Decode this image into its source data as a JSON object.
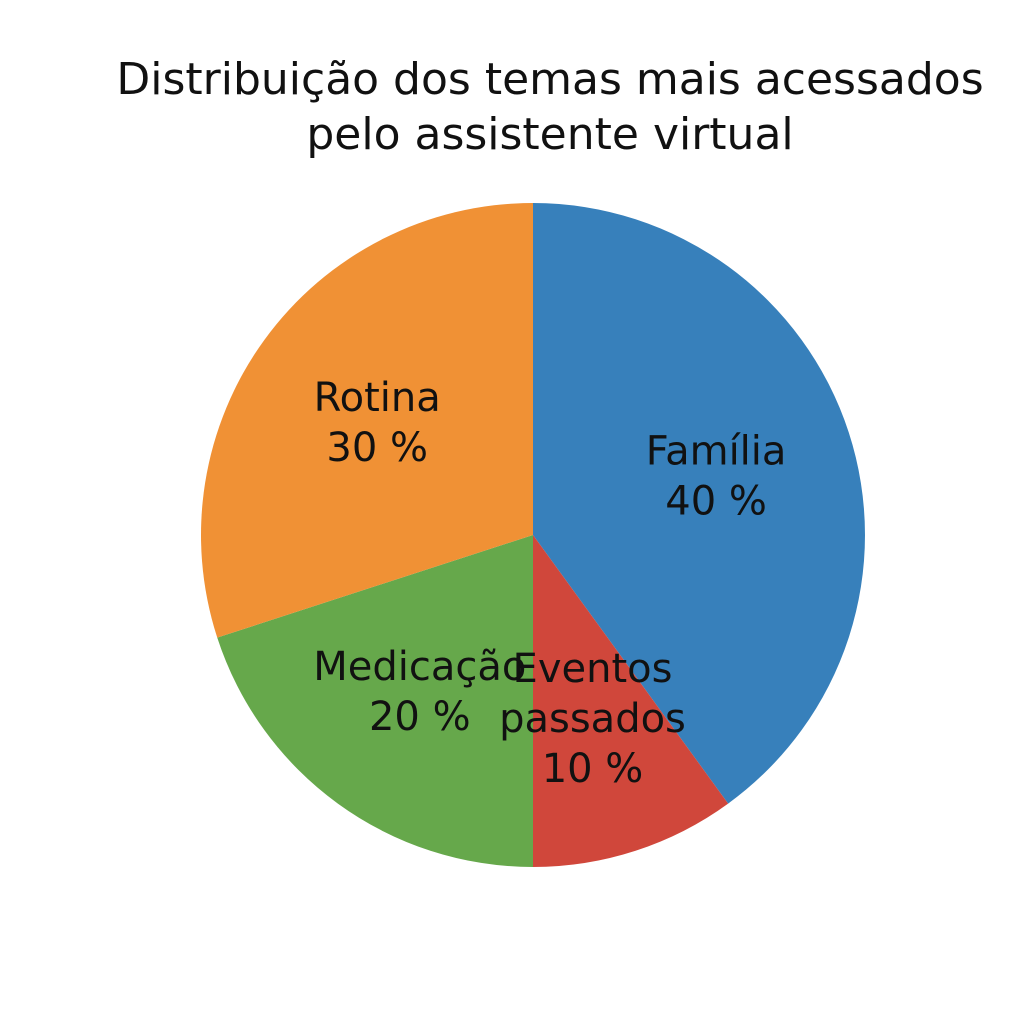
{
  "chart_data": {
    "type": "pie",
    "title": [
      "Distribuição dos temas mais acessados",
      "pelo assistente virtual"
    ],
    "legend": "none",
    "slices": [
      {
        "label": [
          "Família"
        ],
        "pct_label": "40 %",
        "value": 40,
        "color": "#3780bb"
      },
      {
        "label": [
          "Eventos",
          "passados"
        ],
        "pct_label": "10 %",
        "value": 10,
        "color": "#d0473b"
      },
      {
        "label": [
          "Medicação"
        ],
        "pct_label": "20 %",
        "value": 20,
        "color": "#66a84b"
      },
      {
        "label": [
          "Rotina"
        ],
        "pct_label": "30 %",
        "value": 30,
        "color": "#f09135"
      }
    ]
  }
}
